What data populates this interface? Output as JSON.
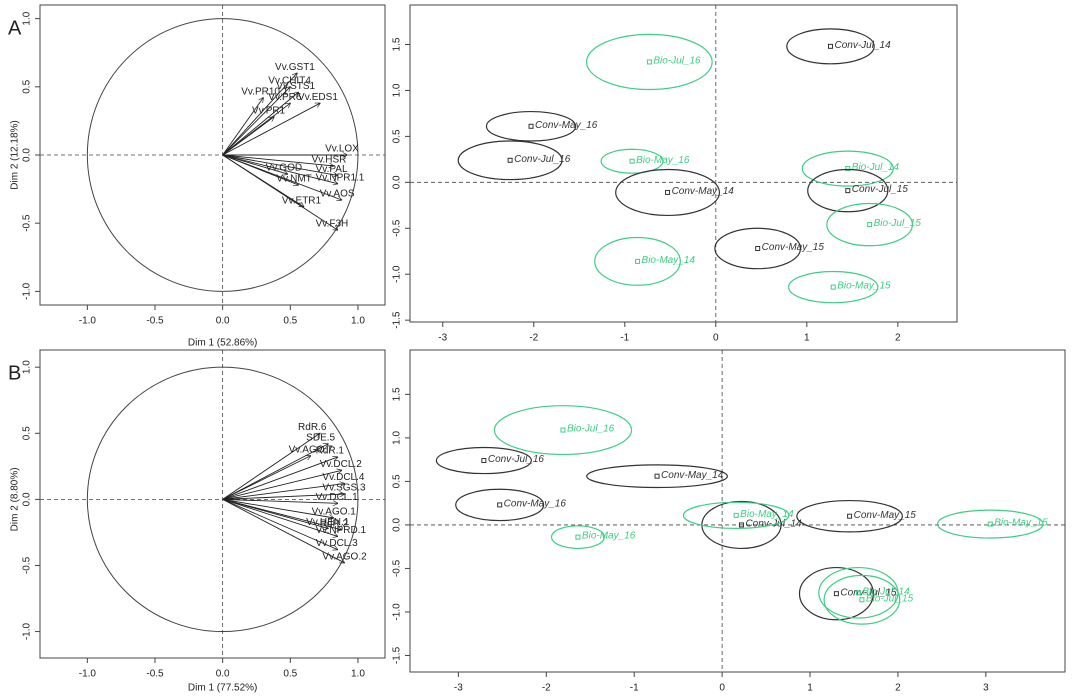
{
  "chart_data": [
    {
      "type": "correlation-circle",
      "panel": "A",
      "xlabel": "Dim 1 (52.86%)",
      "ylabel": "Dim 2 (12.18%)",
      "xlim": [
        -1.35,
        1.2
      ],
      "ylim": [
        -1.1,
        1.1
      ],
      "xticks": [
        {
          "value": -1,
          "label": "-1.0"
        },
        -0.5,
        {
          "value": 0,
          "label": "0.0"
        },
        0.5,
        {
          "value": 1,
          "label": "1.0"
        }
      ],
      "yticks": [
        {
          "value": -1,
          "label": "-1.0"
        },
        -0.5,
        {
          "value": 0,
          "label": "0.0"
        },
        0.5,
        {
          "value": 1,
          "label": "1.0"
        }
      ],
      "variables": [
        {
          "name": "Vv.GST1",
          "x": 0.55,
          "y": 0.6
        },
        {
          "name": "Vv.CHIT4",
          "x": 0.5,
          "y": 0.5
        },
        {
          "name": "Vv.STS1",
          "x": 0.56,
          "y": 0.46
        },
        {
          "name": "Vv.PR10.1",
          "x": 0.3,
          "y": 0.42
        },
        {
          "name": "Vv.PR6",
          "x": 0.5,
          "y": 0.38
        },
        {
          "name": "Vv.EDS1",
          "x": 0.72,
          "y": 0.38
        },
        {
          "name": "Vv.PR1",
          "x": 0.38,
          "y": 0.28
        },
        {
          "name": "Vv.LOX",
          "x": 0.92,
          "y": 0.0
        },
        {
          "name": "Vv.HSR",
          "x": 0.82,
          "y": -0.08
        },
        {
          "name": "Vv.PAL",
          "x": 0.85,
          "y": -0.15
        },
        {
          "name": "Vv.GOD",
          "x": 0.48,
          "y": -0.14
        },
        {
          "name": "Vv.NMT",
          "x": 0.56,
          "y": -0.22
        },
        {
          "name": "Vv.NPR1.1",
          "x": 0.85,
          "y": -0.21
        },
        {
          "name": "Vv.AOS",
          "x": 0.88,
          "y": -0.33
        },
        {
          "name": "Vv.ETR1",
          "x": 0.6,
          "y": -0.38
        },
        {
          "name": "Vv.F3H",
          "x": 0.85,
          "y": -0.55
        }
      ]
    },
    {
      "type": "ellipse-scatter",
      "xlim": [
        -3.36,
        2.65
      ],
      "ylim": [
        -1.52,
        1.93
      ],
      "xticks": [
        -3,
        -2,
        -1,
        0,
        1,
        2
      ],
      "yticks": [
        -1.5,
        {
          "value": -1,
          "label": "-1.0"
        },
        -0.5,
        {
          "value": 0,
          "label": "0.0"
        },
        0.5,
        {
          "value": 1,
          "label": "1.0"
        },
        1.5
      ],
      "points": [
        {
          "label": "Conv-Jul_14",
          "x": 1.26,
          "y": 1.48,
          "rx": 0.48,
          "ry": 0.19,
          "color": "#333333"
        },
        {
          "label": "Bio-Jul_16",
          "x": -0.73,
          "y": 1.31,
          "rx": 0.69,
          "ry": 0.3,
          "color": "#3dce84"
        },
        {
          "label": "Conv-May_16",
          "x": -2.03,
          "y": 0.61,
          "rx": 0.49,
          "ry": 0.16,
          "color": "#333333"
        },
        {
          "label": "Conv-Jul_16",
          "x": -2.26,
          "y": 0.24,
          "rx": 0.57,
          "ry": 0.21,
          "color": "#333333"
        },
        {
          "label": "Bio-May_16",
          "x": -0.92,
          "y": 0.23,
          "rx": 0.34,
          "ry": 0.13,
          "color": "#3dce84"
        },
        {
          "label": "Conv-May_14",
          "x": -0.53,
          "y": -0.11,
          "rx": 0.57,
          "ry": 0.25,
          "color": "#333333"
        },
        {
          "label": "Bio-Jul_14",
          "x": 1.45,
          "y": 0.15,
          "rx": 0.5,
          "ry": 0.19,
          "color": "#3dce84"
        },
        {
          "label": "Conv-Jul_15",
          "x": 1.45,
          "y": -0.09,
          "rx": 0.44,
          "ry": 0.23,
          "color": "#333333"
        },
        {
          "label": "Bio-Jul_15",
          "x": 1.69,
          "y": -0.46,
          "rx": 0.47,
          "ry": 0.23,
          "color": "#3dce84"
        },
        {
          "label": "Conv-May_15",
          "x": 0.46,
          "y": -0.72,
          "rx": 0.47,
          "ry": 0.22,
          "color": "#333333"
        },
        {
          "label": "Bio-May_14",
          "x": -0.86,
          "y": -0.86,
          "rx": 0.47,
          "ry": 0.26,
          "color": "#3dce84"
        },
        {
          "label": "Bio-May_15",
          "x": 1.29,
          "y": -1.14,
          "rx": 0.49,
          "ry": 0.17,
          "color": "#3dce84"
        }
      ]
    },
    {
      "type": "correlation-circle",
      "panel": "B",
      "xlabel": "Dim 1 (77.52%)",
      "ylabel": "Dim 2 (8.80%)",
      "xlim": [
        -1.35,
        1.2
      ],
      "ylim": [
        -1.2,
        1.13
      ],
      "xticks": [
        {
          "value": -1,
          "label": "-1.0"
        },
        -0.5,
        {
          "value": 0,
          "label": "0.0"
        },
        0.5,
        {
          "value": 1,
          "label": "1.0"
        }
      ],
      "yticks": [
        {
          "value": -1,
          "label": "-1.0"
        },
        -0.5,
        {
          "value": 0,
          "label": "0.0"
        },
        0.5,
        {
          "value": 1,
          "label": "1.0"
        }
      ],
      "variables": [
        {
          "name": "RdR.6",
          "x": 0.72,
          "y": 0.5
        },
        {
          "name": "SDE.5",
          "x": 0.78,
          "y": 0.42
        },
        {
          "name": "Vv.AGO.7",
          "x": 0.65,
          "y": 0.33
        },
        {
          "name": "RdR.1",
          "x": 0.85,
          "y": 0.32
        },
        {
          "name": "Vv.DCL.2",
          "x": 0.88,
          "y": 0.22
        },
        {
          "name": "Vv.DCL.4",
          "x": 0.9,
          "y": 0.12
        },
        {
          "name": "Vv.SGS.3",
          "x": 0.9,
          "y": 0.04
        },
        {
          "name": "Vv.DCL.1",
          "x": 0.85,
          "y": -0.03
        },
        {
          "name": "Vv.AGO.1",
          "x": 0.82,
          "y": -0.14
        },
        {
          "name": "Vv.HEN.1",
          "x": 0.78,
          "y": -0.22
        },
        {
          "name": "RdR.2",
          "x": 0.88,
          "y": -0.23
        },
        {
          "name": "Vv.NPRD.1",
          "x": 0.85,
          "y": -0.28
        },
        {
          "name": "Vv.DCL.3",
          "x": 0.85,
          "y": -0.38
        },
        {
          "name": "Vv.AGO.2",
          "x": 0.9,
          "y": -0.48
        }
      ]
    },
    {
      "type": "ellipse-scatter",
      "xlim": [
        -3.55,
        3.9
      ],
      "ylim": [
        -1.69,
        2.01
      ],
      "xticks": [
        -3,
        -2,
        -1,
        0,
        1,
        2,
        3
      ],
      "yticks": [
        -1.5,
        {
          "value": -1,
          "label": "-1.0"
        },
        -0.5,
        {
          "value": 0,
          "label": "0.0"
        },
        0.5,
        {
          "value": 1,
          "label": "1.0"
        },
        1.5
      ],
      "points": [
        {
          "label": "Bio-Jul_16",
          "x": -1.81,
          "y": 1.09,
          "rx": 0.78,
          "ry": 0.28,
          "color": "#3dce84"
        },
        {
          "label": "Conv-Jul_16",
          "x": -2.71,
          "y": 0.74,
          "rx": 0.54,
          "ry": 0.15,
          "color": "#333333"
        },
        {
          "label": "Conv-May_14",
          "x": -0.74,
          "y": 0.56,
          "rx": 0.8,
          "ry": 0.13,
          "color": "#333333"
        },
        {
          "label": "Conv-May_16",
          "x": -2.53,
          "y": 0.23,
          "rx": 0.5,
          "ry": 0.18,
          "color": "#333333"
        },
        {
          "label": "Bio-May_16",
          "x": -1.64,
          "y": -0.14,
          "rx": 0.3,
          "ry": 0.13,
          "color": "#3dce84"
        },
        {
          "label": "Conv-Jul_14",
          "x": 0.22,
          "y": 0.0,
          "rx": 0.45,
          "ry": 0.27,
          "color": "#333333"
        },
        {
          "label": "Bio-May_14",
          "x": 0.16,
          "y": 0.11,
          "rx": 0.6,
          "ry": 0.15,
          "color": "#3dce84"
        },
        {
          "label": "Conv-May_15",
          "x": 1.45,
          "y": 0.1,
          "rx": 0.6,
          "ry": 0.18,
          "color": "#333333"
        },
        {
          "label": "Bio-May_15",
          "x": 3.05,
          "y": 0.01,
          "rx": 0.6,
          "ry": 0.16,
          "color": "#3dce84"
        },
        {
          "label": "Conv-Jul_15",
          "x": 1.3,
          "y": -0.79,
          "rx": 0.42,
          "ry": 0.3,
          "color": "#333333"
        },
        {
          "label": "Bio-Jul_14",
          "x": 1.55,
          "y": -0.78,
          "rx": 0.45,
          "ry": 0.29,
          "color": "#3dce84"
        },
        {
          "label": "Bio-Jul_15",
          "x": 1.59,
          "y": -0.86,
          "rx": 0.43,
          "ry": 0.28,
          "color": "#3dce84"
        }
      ]
    }
  ]
}
